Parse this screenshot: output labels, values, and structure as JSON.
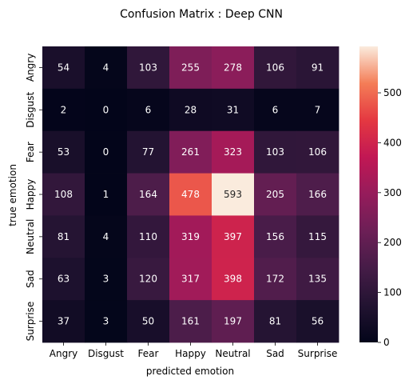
{
  "chart_data": {
    "type": "heatmap",
    "title": "Confusion Matrix : Deep CNN",
    "xlabel": "predicted emotion",
    "ylabel": "true emotion",
    "x_categories": [
      "Angry",
      "Disgust",
      "Fear",
      "Happy",
      "Neutral",
      "Sad",
      "Surprise"
    ],
    "y_categories": [
      "Angry",
      "Disgust",
      "Fear",
      "Happy",
      "Neutral",
      "Sad",
      "Surprise"
    ],
    "values": [
      [
        54,
        4,
        103,
        255,
        278,
        106,
        91
      ],
      [
        2,
        0,
        6,
        28,
        31,
        6,
        7
      ],
      [
        53,
        0,
        77,
        261,
        323,
        103,
        106
      ],
      [
        108,
        1,
        164,
        478,
        593,
        205,
        166
      ],
      [
        81,
        4,
        110,
        319,
        397,
        156,
        115
      ],
      [
        63,
        3,
        120,
        317,
        398,
        172,
        135
      ],
      [
        37,
        3,
        50,
        161,
        197,
        81,
        56
      ]
    ],
    "colorbar": {
      "min": 0,
      "max": 593,
      "ticks": [
        0,
        100,
        200,
        300,
        400,
        500
      ],
      "colormap": "rocket"
    }
  }
}
